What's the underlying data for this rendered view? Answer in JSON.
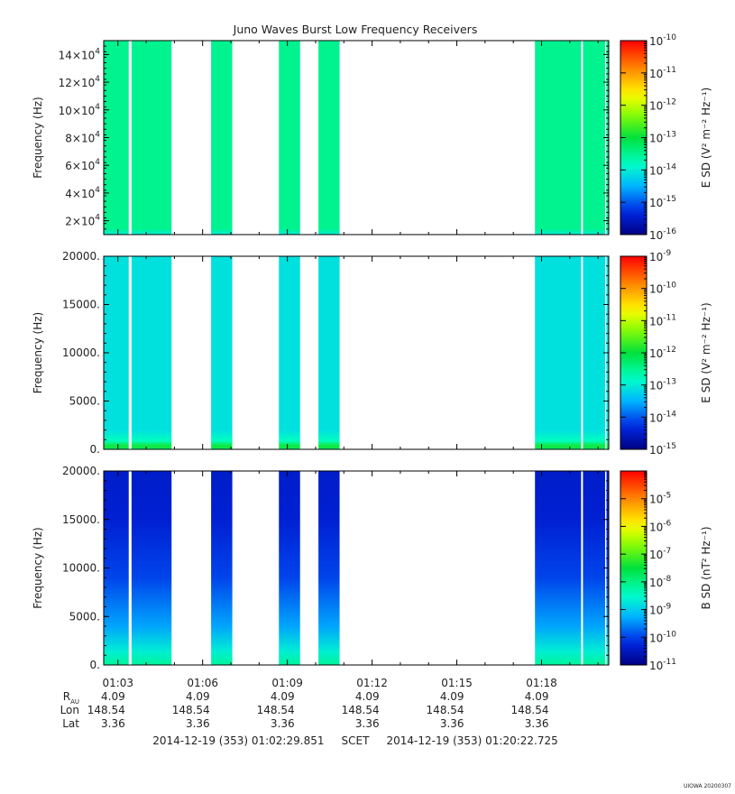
{
  "chart_data": {
    "type": "heatmap",
    "title": "Juno Waves Burst Low Frequency Receivers",
    "time_axis": {
      "start": "2014-12-19T01:02:29.851",
      "end": "2014-12-19T01:20:22.725",
      "tick_labels": [
        "01:03",
        "01:06",
        "01:09",
        "01:12",
        "01:15",
        "01:18"
      ],
      "tick_times": [
        "01:03:00",
        "01:06:00",
        "01:09:00",
        "01:12:00",
        "01:15:00",
        "01:18:00"
      ]
    },
    "data_intervals": [
      [
        "01:02:29",
        "01:03:23"
      ],
      [
        "01:03:29",
        "01:04:54"
      ],
      [
        "01:06:18",
        "01:07:03"
      ],
      [
        "01:08:42",
        "01:09:27"
      ],
      [
        "01:10:06",
        "01:10:51"
      ],
      [
        "01:17:46",
        "01:19:24"
      ],
      [
        "01:19:28",
        "01:20:15"
      ],
      [
        "01:20:18",
        "01:20:22"
      ]
    ],
    "panels": [
      {
        "name": "upper",
        "ylabel": "Frequency (Hz)",
        "ylim": [
          10000,
          150000
        ],
        "y_ticks": [
          {
            "value": 20000,
            "mant": "2×10",
            "exp": "4"
          },
          {
            "value": 40000,
            "mant": "4×10",
            "exp": "4"
          },
          {
            "value": 60000,
            "mant": "6×10",
            "exp": "4"
          },
          {
            "value": 80000,
            "mant": "8×10",
            "exp": "4"
          },
          {
            "value": 100000,
            "mant": "10×10",
            "exp": "4"
          },
          {
            "value": 120000,
            "mant": "12×10",
            "exp": "4"
          },
          {
            "value": 140000,
            "mant": "14×10",
            "exp": "4"
          }
        ],
        "colorbar": {
          "label": "E SD (V² m⁻² Hz⁻¹)",
          "log_range": [
            -16,
            -10
          ],
          "tick_exps": [
            -16,
            -15,
            -14,
            -13,
            -12,
            -11,
            -10
          ]
        },
        "background_log_level": -13.5
      },
      {
        "name": "middle",
        "ylabel": "Frequency (Hz)",
        "ylim": [
          0,
          20000
        ],
        "y_ticks": [
          {
            "value": 0,
            "label": "0."
          },
          {
            "value": 5000,
            "label": "5000."
          },
          {
            "value": 10000,
            "label": "10000."
          },
          {
            "value": 15000,
            "label": "15000."
          },
          {
            "value": 20000,
            "label": "20000."
          }
        ],
        "colorbar": {
          "label": "E SD (V² m⁻² Hz⁻¹)",
          "log_range": [
            -15,
            -9
          ],
          "tick_exps": [
            -15,
            -14,
            -13,
            -12,
            -11,
            -10,
            -9
          ]
        },
        "background_log_level": -13.1
      },
      {
        "name": "lower",
        "ylabel": "Frequency (Hz)",
        "ylim": [
          0,
          20000
        ],
        "y_ticks": [
          {
            "value": 0,
            "label": "0."
          },
          {
            "value": 5000,
            "label": "5000."
          },
          {
            "value": 10000,
            "label": "10000."
          },
          {
            "value": 15000,
            "label": "15000."
          },
          {
            "value": 20000,
            "label": "20000."
          }
        ],
        "colorbar": {
          "label": "B SD (nT² Hz⁻¹)",
          "log_range": [
            -11,
            -4
          ],
          "tick_exps": [
            -11,
            -10,
            -9,
            -8,
            -7,
            -6,
            -5
          ]
        },
        "background_log_level": -10.4
      }
    ],
    "ephemeris": {
      "row_labels": [
        "R",
        "Lon",
        "Lat"
      ],
      "r_subscript": "AU",
      "rows": [
        [
          "4.09",
          "4.09",
          "4.09",
          "4.09",
          "4.09",
          "4.09"
        ],
        [
          "148.54",
          "148.54",
          "148.54",
          "148.54",
          "148.54",
          "148.54"
        ],
        [
          "3.36",
          "3.36",
          "3.36",
          "3.36",
          "3.36",
          "3.36"
        ]
      ]
    },
    "time_range_text": "2014-12-19 (353) 01:02:29.851     SCET     2014-12-19 (353) 01:20:22.725"
  },
  "footer_tag": "UIOWA 20200307"
}
